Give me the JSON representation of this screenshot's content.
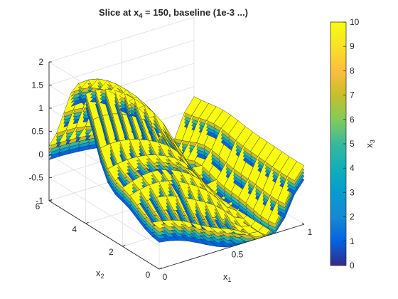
{
  "chart_data": {
    "type": "surface3d",
    "title": {
      "prefix": "Slice  at  x",
      "sub": "4",
      "suffix": "  =  150,  baseline  (1e-3  ...)"
    },
    "xlabel": {
      "main": "x",
      "sub": "1"
    },
    "ylabel": {
      "main": "x",
      "sub": "2"
    },
    "colorbar_label": {
      "main": "x",
      "sub": "3"
    },
    "xlim": [
      0,
      1
    ],
    "ylim": [
      0,
      6
    ],
    "zlim": [
      -1,
      2
    ],
    "x_ticks": [
      "0",
      "0.5",
      "1"
    ],
    "y_ticks": [
      "0",
      "2",
      "4",
      "6"
    ],
    "z_ticks": [
      "-1",
      "-0.5",
      "0",
      "0.5",
      "1",
      "1.5",
      "2"
    ],
    "x_tick_values": [
      0,
      0.5,
      1
    ],
    "y_tick_values": [
      0,
      2,
      4,
      6
    ],
    "z_tick_values": [
      -1,
      -0.5,
      0,
      0.5,
      1,
      1.5,
      2
    ],
    "colorbar_ticks": [
      "0",
      "1",
      "2",
      "3",
      "4",
      "5",
      "6",
      "7",
      "8",
      "9",
      "10"
    ],
    "colorbar_tick_values": [
      0,
      1,
      2,
      3,
      4,
      5,
      6,
      7,
      8,
      9,
      10
    ],
    "color_range": [
      0,
      10
    ],
    "colormap": "parula",
    "grid": true,
    "x_samples": 16,
    "y_samples": 16,
    "layers": [
      {
        "level": 1,
        "offset": -0.3
      },
      {
        "level": 3,
        "offset": -0.22
      },
      {
        "level": 5,
        "offset": -0.15
      },
      {
        "level": 7,
        "offset": -0.08
      },
      {
        "level": 10,
        "offset": 0
      }
    ],
    "colors": {
      "grid": "#dedede",
      "axis": "#262626",
      "mesh": "#1a1a1a"
    }
  }
}
